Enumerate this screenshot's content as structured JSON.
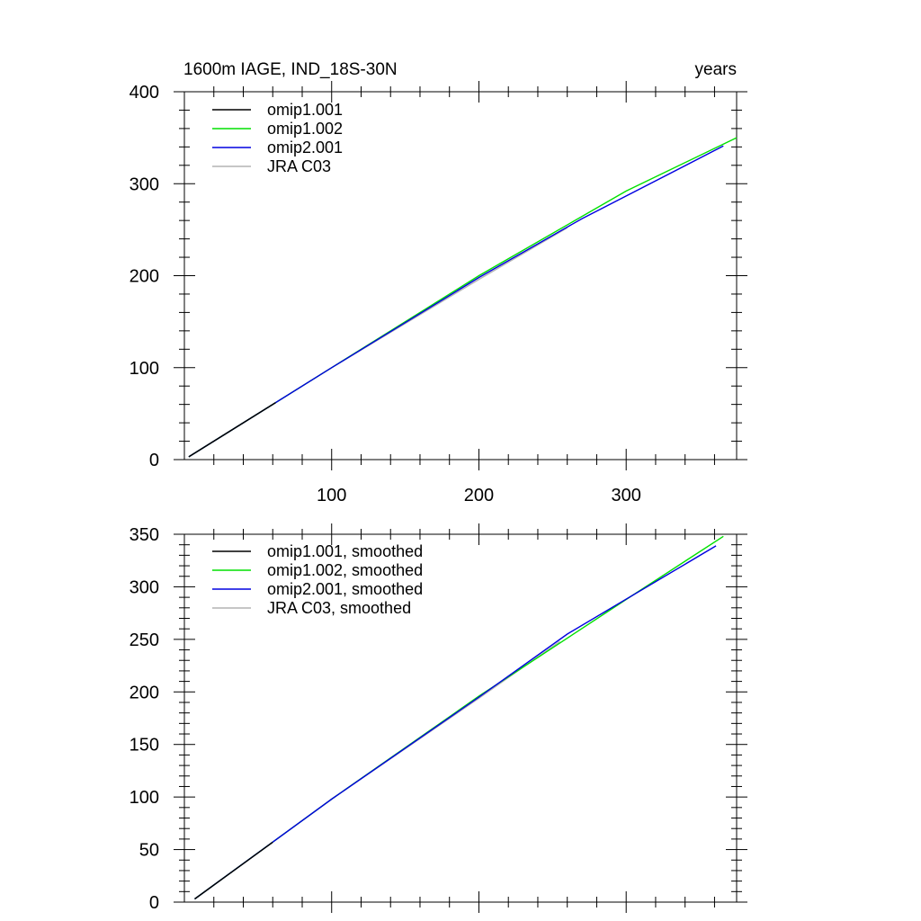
{
  "chart_data": [
    {
      "type": "line",
      "title": "1600m IAGE, IND_18S-30N",
      "title_right": "years",
      "xlim": [
        0,
        375
      ],
      "ylim": [
        0,
        400
      ],
      "xticks": [
        100,
        200,
        300
      ],
      "yticks": [
        0,
        100,
        200,
        300,
        400
      ],
      "series": [
        {
          "name": "omip1.001",
          "color": "#000000",
          "x": [
            3,
            62,
            62
          ],
          "y": [
            3,
            62,
            62
          ]
        },
        {
          "name": "omip1.002",
          "color": "#00e000",
          "x": [
            3,
            100,
            200,
            300,
            375
          ],
          "y": [
            3,
            100,
            200,
            292,
            350
          ]
        },
        {
          "name": "omip2.001",
          "color": "#0000e0",
          "x": [
            3,
            100,
            200,
            270,
            366
          ],
          "y": [
            3,
            100,
            198,
            262,
            341
          ]
        },
        {
          "name": "JRA C03",
          "color": "#b4b4b4",
          "x": [
            3,
            100,
            200,
            260
          ],
          "y": [
            3,
            100,
            196,
            252
          ]
        }
      ]
    },
    {
      "type": "line",
      "xlim": [
        0,
        375
      ],
      "ylim": [
        0,
        350
      ],
      "xticks": [
        100,
        200,
        300
      ],
      "yticks": [
        0,
        50,
        100,
        150,
        200,
        250,
        300,
        350
      ],
      "series": [
        {
          "name": "omip1.001, smoothed",
          "color": "#000000",
          "x": [
            7,
            60,
            60
          ],
          "y": [
            3,
            57,
            57
          ]
        },
        {
          "name": "omip1.002, smoothed",
          "color": "#00e000",
          "x": [
            7,
            100,
            200,
            300,
            366
          ],
          "y": [
            3,
            98,
            196,
            288,
            348
          ]
        },
        {
          "name": "omip2.001, smoothed",
          "color": "#0000e0",
          "x": [
            7,
            100,
            200,
            260,
            361
          ],
          "y": [
            3,
            98,
            195,
            255,
            339
          ]
        },
        {
          "name": "JRA C03, smoothed",
          "color": "#b4b4b4",
          "x": [
            7,
            100,
            200,
            255
          ],
          "y": [
            3,
            98,
            194,
            248
          ]
        }
      ]
    }
  ]
}
